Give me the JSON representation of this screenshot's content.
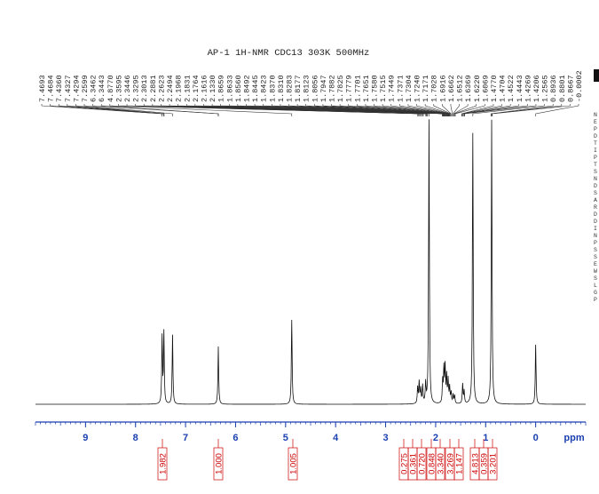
{
  "chart_data": {
    "type": "spectrum",
    "title": "AP-1  1H-NMR CDC13 303K 500MHz",
    "xlabel": "ppm",
    "xlim": [
      10,
      -1
    ],
    "xticks": [
      9,
      8,
      7,
      6,
      5,
      4,
      3,
      2,
      1,
      0
    ],
    "axis_color": "#1a3fb0",
    "integral_color": "#cc0000",
    "parameters": "NEPDTIPTSNDSARDDINPSSEWSLGP",
    "peak_labels": [
      {
        "value": 7.4693,
        "label": "7.4693"
      },
      {
        "value": 7.4684,
        "label": "7.4684"
      },
      {
        "value": 7.436,
        "label": "7.4360"
      },
      {
        "value": 7.4327,
        "label": "7.4327"
      },
      {
        "value": 7.4294,
        "label": "7.4294"
      },
      {
        "value": 7.2599,
        "label": "7.2599"
      },
      {
        "value": 6.3462,
        "label": "6.3462"
      },
      {
        "value": 6.3443,
        "label": "6.3443"
      },
      {
        "value": 4.877,
        "label": "4.8770"
      },
      {
        "value": 2.3595,
        "label": "2.3595"
      },
      {
        "value": 2.3446,
        "label": "2.3446"
      },
      {
        "value": 2.3295,
        "label": "2.3295"
      },
      {
        "value": 2.3013,
        "label": "2.3013"
      },
      {
        "value": 2.2881,
        "label": "2.2881"
      },
      {
        "value": 2.2623,
        "label": "2.2623"
      },
      {
        "value": 2.2494,
        "label": "2.2494"
      },
      {
        "value": 2.1968,
        "label": "2.1968"
      },
      {
        "value": 2.1831,
        "label": "2.1831"
      },
      {
        "value": 2.1764,
        "label": "2.1764"
      },
      {
        "value": 2.1616,
        "label": "2.1616"
      },
      {
        "value": 2.133,
        "label": "2.1330"
      },
      {
        "value": 1.8659,
        "label": "1.8659"
      },
      {
        "value": 1.8633,
        "label": "1.8633"
      },
      {
        "value": 1.856,
        "label": "1.8560"
      },
      {
        "value": 1.8492,
        "label": "1.8492"
      },
      {
        "value": 1.8445,
        "label": "1.8445"
      },
      {
        "value": 1.8423,
        "label": "1.8423"
      },
      {
        "value": 1.837,
        "label": "1.8370"
      },
      {
        "value": 1.831,
        "label": "1.8310"
      },
      {
        "value": 1.8283,
        "label": "1.8283"
      },
      {
        "value": 1.8177,
        "label": "1.8177"
      },
      {
        "value": 1.8123,
        "label": "1.8123"
      },
      {
        "value": 1.8056,
        "label": "1.8056"
      },
      {
        "value": 1.7947,
        "label": "1.7947"
      },
      {
        "value": 1.7882,
        "label": "1.7882"
      },
      {
        "value": 1.7825,
        "label": "1.7825"
      },
      {
        "value": 1.7779,
        "label": "1.7779"
      },
      {
        "value": 1.7701,
        "label": "1.7701"
      },
      {
        "value": 1.7651,
        "label": "1.7651"
      },
      {
        "value": 1.758,
        "label": "1.7580"
      },
      {
        "value": 1.7515,
        "label": "1.7515"
      },
      {
        "value": 1.7449,
        "label": "1.7449"
      },
      {
        "value": 1.7371,
        "label": "1.7371"
      },
      {
        "value": 1.7304,
        "label": "1.7304"
      },
      {
        "value": 1.724,
        "label": "1.7240"
      },
      {
        "value": 1.7171,
        "label": "1.7171"
      },
      {
        "value": 1.7028,
        "label": "1.7028"
      },
      {
        "value": 1.6916,
        "label": "1.6916"
      },
      {
        "value": 1.6662,
        "label": "1.6662"
      },
      {
        "value": 1.6512,
        "label": "1.6512"
      },
      {
        "value": 1.6369,
        "label": "1.6369"
      },
      {
        "value": 1.622,
        "label": "1.6220"
      },
      {
        "value": 1.6069,
        "label": "1.6069"
      },
      {
        "value": 1.477,
        "label": "1.4770"
      },
      {
        "value": 1.4704,
        "label": "1.4704"
      },
      {
        "value": 1.4522,
        "label": "1.4522"
      },
      {
        "value": 1.4443,
        "label": "1.4443"
      },
      {
        "value": 1.4269,
        "label": "1.4269"
      },
      {
        "value": 1.4206,
        "label": "1.4206"
      },
      {
        "value": 1.2565,
        "label": "1.2565"
      },
      {
        "value": 0.8936,
        "label": "0.8936"
      },
      {
        "value": 0.8801,
        "label": "0.8801"
      },
      {
        "value": 0.8667,
        "label": "0.8667"
      },
      {
        "value": -0.0002,
        "label": "-0.0002"
      }
    ],
    "integrals": [
      {
        "value": 1.982,
        "label": "1.982"
      },
      {
        "value": 1,
        "label": "1.000"
      },
      {
        "value": 1.005,
        "label": "1.005"
      },
      {
        "value": 0.275,
        "label": "0.275"
      },
      {
        "value": 0.361,
        "label": "0.361"
      },
      {
        "value": 0.72,
        "label": "0.720"
      },
      {
        "value": 0.848,
        "label": "0.848"
      },
      {
        "value": 3.34,
        "label": "3.340"
      },
      {
        "value": 3.269,
        "label": "3.269"
      },
      {
        "value": 1.147,
        "label": "1.147"
      },
      {
        "value": 4.813,
        "label": "4.813"
      },
      {
        "value": 0.359,
        "label": "0.359"
      },
      {
        "value": 3.201,
        "label": "3.201"
      }
    ]
  }
}
